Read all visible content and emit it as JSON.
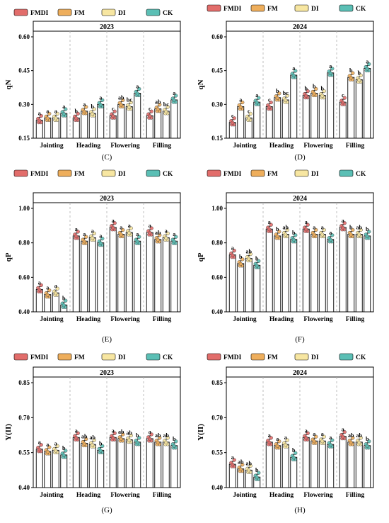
{
  "legend": [
    {
      "label": "FMDI",
      "color": "#e26d6b"
    },
    {
      "label": "FM",
      "color": "#eeae5c"
    },
    {
      "label": "DI",
      "color": "#f7e6a1"
    },
    {
      "label": "CK",
      "color": "#5bbfb5"
    }
  ],
  "chart_data": [
    {
      "type": "bar",
      "panel": "(C)",
      "title": "2023",
      "ylabel": "qN",
      "ylim": [
        0.15,
        0.6
      ],
      "yticks": [
        "0.15",
        "0.30",
        "0.45",
        "0.60"
      ],
      "categories": [
        "Jointing",
        "Heading",
        "Flowering",
        "Filling"
      ],
      "series": [
        {
          "name": "FMDI",
          "values": [
            0.23,
            0.24,
            0.25,
            0.25
          ],
          "letters": [
            "a",
            "b",
            "c",
            "c"
          ]
        },
        {
          "name": "FM",
          "values": [
            0.24,
            0.27,
            0.3,
            0.28
          ],
          "letters": [
            "a",
            "a",
            "ab",
            "ab"
          ]
        },
        {
          "name": "DI",
          "values": [
            0.24,
            0.26,
            0.29,
            0.27
          ],
          "letters": [
            "a",
            "b",
            "bc",
            "bc"
          ]
        },
        {
          "name": "CK",
          "values": [
            0.26,
            0.3,
            0.35,
            0.32
          ],
          "letters": [
            "a",
            "a",
            "a",
            "a"
          ]
        }
      ]
    },
    {
      "type": "bar",
      "panel": "(D)",
      "title": "2024",
      "ylabel": "qN",
      "ylim": [
        0.15,
        0.6
      ],
      "yticks": [
        "0.15",
        "0.30",
        "0.45",
        "0.60"
      ],
      "categories": [
        "Jointing",
        "Heading",
        "Flowering",
        "Filling"
      ],
      "series": [
        {
          "name": "FMDI",
          "values": [
            0.22,
            0.29,
            0.34,
            0.31
          ],
          "letters": [
            "c",
            "c",
            "b",
            "c"
          ]
        },
        {
          "name": "FM",
          "values": [
            0.29,
            0.33,
            0.35,
            0.42
          ],
          "letters": [
            "a",
            "b",
            "b",
            "b"
          ]
        },
        {
          "name": "DI",
          "values": [
            0.24,
            0.32,
            0.34,
            0.41
          ],
          "letters": [
            "c",
            "bc",
            "b",
            "b"
          ]
        },
        {
          "name": "CK",
          "values": [
            0.31,
            0.43,
            0.44,
            0.46
          ],
          "letters": [
            "a",
            "a",
            "a",
            "a"
          ]
        }
      ]
    },
    {
      "type": "bar",
      "panel": "(E)",
      "title": "2023",
      "ylabel": "qP",
      "ylim": [
        0.4,
        1.0
      ],
      "yticks": [
        "0.40",
        "0.60",
        "0.80",
        "1.00"
      ],
      "categories": [
        "Jointing",
        "Heading",
        "Flowering",
        "Filling"
      ],
      "series": [
        {
          "name": "FMDI",
          "values": [
            0.53,
            0.84,
            0.89,
            0.86
          ],
          "letters": [
            "a",
            "a",
            "a",
            "a"
          ]
        },
        {
          "name": "FM",
          "values": [
            0.5,
            0.81,
            0.85,
            0.82
          ],
          "letters": [
            "a",
            "a",
            "a",
            "ab"
          ]
        },
        {
          "name": "DI",
          "values": [
            0.51,
            0.83,
            0.86,
            0.83
          ],
          "letters": [
            "a",
            "a",
            "a",
            "a"
          ]
        },
        {
          "name": "CK",
          "values": [
            0.44,
            0.8,
            0.81,
            0.81
          ],
          "letters": [
            "b",
            "a",
            "a",
            "a"
          ]
        }
      ]
    },
    {
      "type": "bar",
      "panel": "(F)",
      "title": "2024",
      "ylabel": "qP",
      "ylim": [
        0.4,
        1.0
      ],
      "yticks": [
        "0.40",
        "0.60",
        "0.80",
        "1.00"
      ],
      "categories": [
        "Jointing",
        "Heading",
        "Flowering",
        "Filling"
      ],
      "series": [
        {
          "name": "FMDI",
          "values": [
            0.73,
            0.88,
            0.88,
            0.89
          ],
          "letters": [
            "a",
            "a",
            "a",
            "a"
          ]
        },
        {
          "name": "FM",
          "values": [
            0.68,
            0.84,
            0.85,
            0.85
          ],
          "letters": [
            "b",
            "b",
            "a",
            "b"
          ]
        },
        {
          "name": "DI",
          "values": [
            0.71,
            0.85,
            0.85,
            0.85
          ],
          "letters": [
            "ab",
            "ab",
            "a",
            "ab"
          ]
        },
        {
          "name": "CK",
          "values": [
            0.67,
            0.82,
            0.82,
            0.84
          ],
          "letters": [
            "b",
            "b",
            "a",
            "b"
          ]
        }
      ]
    },
    {
      "type": "bar",
      "panel": "(G)",
      "title": "2023",
      "ylabel": "Y(II)",
      "ylim": [
        0.4,
        0.85
      ],
      "yticks": [
        "0.40",
        "0.55",
        "0.70",
        "0.85"
      ],
      "categories": [
        "Jointing",
        "Heading",
        "Flowering",
        "Filling"
      ],
      "series": [
        {
          "name": "FMDI",
          "values": [
            0.565,
            0.615,
            0.615,
            0.61
          ],
          "letters": [
            "a",
            "a",
            "a",
            "a"
          ]
        },
        {
          "name": "FM",
          "values": [
            0.555,
            0.59,
            0.61,
            0.595
          ],
          "letters": [
            "a",
            "ab",
            "ab",
            "ab"
          ]
        },
        {
          "name": "DI",
          "values": [
            0.56,
            0.585,
            0.605,
            0.595
          ],
          "letters": [
            "a",
            "ab",
            "ab",
            "ab"
          ]
        },
        {
          "name": "CK",
          "values": [
            0.54,
            0.56,
            0.595,
            0.58
          ],
          "letters": [
            "b",
            "b",
            "b",
            "b"
          ]
        }
      ]
    },
    {
      "type": "bar",
      "panel": "(H)",
      "title": "2024",
      "ylabel": "Y(II)",
      "ylim": [
        0.4,
        0.85
      ],
      "yticks": [
        "0.40",
        "0.55",
        "0.70",
        "0.85"
      ],
      "categories": [
        "Jointing",
        "Heading",
        "Flowering",
        "Filling"
      ],
      "series": [
        {
          "name": "FMDI",
          "values": [
            0.5,
            0.595,
            0.615,
            0.62
          ],
          "letters": [
            "a",
            "a",
            "a",
            "a"
          ]
        },
        {
          "name": "FM",
          "values": [
            0.48,
            0.58,
            0.6,
            0.595
          ],
          "letters": [
            "ab",
            "a",
            "a",
            "ab"
          ]
        },
        {
          "name": "DI",
          "values": [
            0.475,
            0.585,
            0.6,
            0.595
          ],
          "letters": [
            "ab",
            "a",
            "a",
            "ab"
          ]
        },
        {
          "name": "CK",
          "values": [
            0.445,
            0.53,
            0.585,
            0.58
          ],
          "letters": [
            "b",
            "b",
            "a",
            "b"
          ]
        }
      ]
    }
  ]
}
